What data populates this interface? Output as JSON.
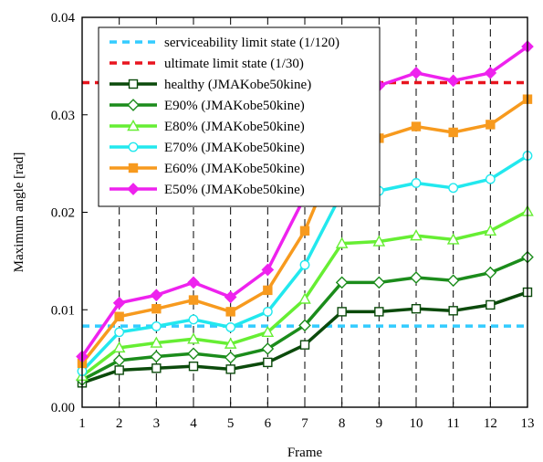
{
  "chart_data": {
    "type": "line",
    "xlabel": "Frame",
    "ylabel": "Maximum angle [rad]",
    "x": [
      1,
      2,
      3,
      4,
      5,
      6,
      7,
      8,
      9,
      10,
      11,
      12,
      13
    ],
    "xlim": [
      1,
      13
    ],
    "ylim": [
      0,
      0.04
    ],
    "x_ticks": [
      "1",
      "2",
      "3",
      "4",
      "5",
      "6",
      "7",
      "8",
      "9",
      "10",
      "11",
      "12",
      "13"
    ],
    "y_ticks": [
      "0.00",
      "0.01",
      "0.02",
      "0.03",
      "0.04"
    ],
    "y_tick_values": [
      0,
      0.01,
      0.02,
      0.03,
      0.04
    ],
    "grid": "vertical dashed",
    "legend_position": "top-left",
    "reference_lines": [
      {
        "name": "serviceability limit state (1/120)",
        "y": 0.00833,
        "color": "#33ccff",
        "style": "dashed"
      },
      {
        "name": "ultimate limit state (1/30)",
        "y": 0.0333,
        "color": "#e8141e",
        "style": "dashed"
      }
    ],
    "series": [
      {
        "name": "healthy (JMAKobe50kine)",
        "color": "#0b4a0b",
        "marker": "square-open",
        "values": [
          0.0025,
          0.0038,
          0.004,
          0.0042,
          0.0039,
          0.0046,
          0.0064,
          0.0098,
          0.0098,
          0.0101,
          0.0099,
          0.0105,
          0.0118
        ]
      },
      {
        "name": "E90% (JMAKobe50kine)",
        "color": "#1b8c1b",
        "marker": "diamond-open",
        "values": [
          0.0028,
          0.0048,
          0.0052,
          0.0055,
          0.0051,
          0.006,
          0.0084,
          0.0128,
          0.0128,
          0.0133,
          0.013,
          0.0138,
          0.0154
        ]
      },
      {
        "name": "E80% (JMAKobe50kine)",
        "color": "#66ee33",
        "marker": "triangle-open",
        "values": [
          0.0032,
          0.0061,
          0.0066,
          0.007,
          0.0065,
          0.0077,
          0.0111,
          0.0168,
          0.017,
          0.0176,
          0.0172,
          0.0181,
          0.0201
        ]
      },
      {
        "name": "E70% (JMAKobe50kine)",
        "color": "#22e8ee",
        "marker": "circle-open",
        "values": [
          0.0037,
          0.0077,
          0.0083,
          0.009,
          0.0082,
          0.0098,
          0.0146,
          0.022,
          0.0222,
          0.023,
          0.0225,
          0.0234,
          0.0258
        ]
      },
      {
        "name": "E60% (JMAKobe50kine)",
        "color": "#f79a1e",
        "marker": "square-filled",
        "values": [
          0.0045,
          0.0093,
          0.0101,
          0.011,
          0.0098,
          0.012,
          0.0181,
          0.0272,
          0.0276,
          0.0288,
          0.0282,
          0.029,
          0.0316
        ]
      },
      {
        "name": "E50% (JMAKobe50kine)",
        "color": "#ee22ee",
        "marker": "diamond-filled",
        "values": [
          0.0052,
          0.0107,
          0.0115,
          0.0128,
          0.0113,
          0.0141,
          0.0216,
          0.0327,
          0.033,
          0.0343,
          0.0335,
          0.0343,
          0.037
        ]
      }
    ]
  }
}
